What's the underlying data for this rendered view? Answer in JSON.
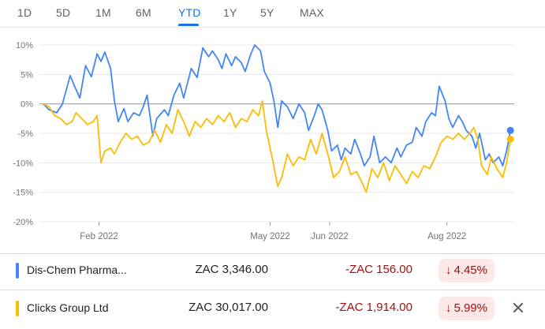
{
  "range_tabs": [
    {
      "label": "1D"
    },
    {
      "label": "5D"
    },
    {
      "label": "1M"
    },
    {
      "label": "6M"
    },
    {
      "label": "YTD",
      "active": true
    },
    {
      "label": "1Y"
    },
    {
      "label": "5Y"
    },
    {
      "label": "MAX"
    }
  ],
  "chart_data": {
    "type": "line",
    "y_ticks": [
      "10%",
      "5%",
      "0%",
      "-5%",
      "-10%",
      "-15%",
      "-20%"
    ],
    "y_tick_values": [
      10,
      5,
      0,
      -5,
      -10,
      -15,
      -20
    ],
    "ylim": [
      -20,
      10
    ],
    "x_range": [
      "2022-01-01",
      "2022-09-05"
    ],
    "x_ticks": [
      {
        "label": "Feb 2022",
        "date": "2022-02-01"
      },
      {
        "label": "May 2022",
        "date": "2022-05-01"
      },
      {
        "label": "Jun 2022",
        "date": "2022-06-01"
      },
      {
        "label": "Aug 2022",
        "date": "2022-08-01"
      }
    ],
    "baseline": 0,
    "grid": "horizontal",
    "series": [
      {
        "name": "Dis-Chem Pharma...",
        "color": "#4285f4",
        "points": [
          [
            "2022-01-03",
            0.0
          ],
          [
            "2022-01-06",
            -1.0
          ],
          [
            "2022-01-10",
            -1.5
          ],
          [
            "2022-01-13",
            0.0
          ],
          [
            "2022-01-17",
            4.8
          ],
          [
            "2022-01-19",
            3.2
          ],
          [
            "2022-01-22",
            1.0
          ],
          [
            "2022-01-25",
            6.5
          ],
          [
            "2022-01-28",
            4.6
          ],
          [
            "2022-01-31",
            8.5
          ],
          [
            "2022-02-02",
            7.2
          ],
          [
            "2022-02-04",
            8.8
          ],
          [
            "2022-02-07",
            6.0
          ],
          [
            "2022-02-09",
            0.5
          ],
          [
            "2022-02-11",
            -3.0
          ],
          [
            "2022-02-14",
            -0.8
          ],
          [
            "2022-02-16",
            -3.0
          ],
          [
            "2022-02-19",
            -1.5
          ],
          [
            "2022-02-22",
            -2.0
          ],
          [
            "2022-02-24",
            -0.5
          ],
          [
            "2022-02-26",
            1.5
          ],
          [
            "2022-03-01",
            -5.5
          ],
          [
            "2022-03-03",
            -2.5
          ],
          [
            "2022-03-07",
            -1.0
          ],
          [
            "2022-03-09",
            -2.0
          ],
          [
            "2022-03-12",
            1.5
          ],
          [
            "2022-03-15",
            3.5
          ],
          [
            "2022-03-17",
            1.0
          ],
          [
            "2022-03-21",
            6.0
          ],
          [
            "2022-03-24",
            4.5
          ],
          [
            "2022-03-27",
            9.5
          ],
          [
            "2022-03-30",
            8.0
          ],
          [
            "2022-04-01",
            9.0
          ],
          [
            "2022-04-04",
            7.5
          ],
          [
            "2022-04-06",
            6.0
          ],
          [
            "2022-04-08",
            8.5
          ],
          [
            "2022-04-11",
            6.5
          ],
          [
            "2022-04-13",
            8.0
          ],
          [
            "2022-04-16",
            7.0
          ],
          [
            "2022-04-18",
            5.5
          ],
          [
            "2022-04-21",
            8.5
          ],
          [
            "2022-04-23",
            10.0
          ],
          [
            "2022-04-26",
            9.0
          ],
          [
            "2022-04-28",
            5.5
          ],
          [
            "2022-05-01",
            3.5
          ],
          [
            "2022-05-03",
            0.5
          ],
          [
            "2022-05-05",
            -4.0
          ],
          [
            "2022-05-07",
            0.5
          ],
          [
            "2022-05-10",
            -0.5
          ],
          [
            "2022-05-13",
            -2.5
          ],
          [
            "2022-05-16",
            0.0
          ],
          [
            "2022-05-19",
            -1.5
          ],
          [
            "2022-05-21",
            -4.5
          ],
          [
            "2022-05-24",
            -2.0
          ],
          [
            "2022-05-26",
            0.0
          ],
          [
            "2022-05-28",
            -1.0
          ],
          [
            "2022-05-31",
            -4.5
          ],
          [
            "2022-06-02",
            -8.0
          ],
          [
            "2022-06-05",
            -7.0
          ],
          [
            "2022-06-07",
            -9.5
          ],
          [
            "2022-06-09",
            -7.5
          ],
          [
            "2022-06-12",
            -8.5
          ],
          [
            "2022-06-14",
            -6.0
          ],
          [
            "2022-06-17",
            -8.5
          ],
          [
            "2022-06-19",
            -10.5
          ],
          [
            "2022-06-22",
            -9.0
          ],
          [
            "2022-06-24",
            -5.5
          ],
          [
            "2022-06-27",
            -10.0
          ],
          [
            "2022-06-30",
            -9.0
          ],
          [
            "2022-07-03",
            -10.0
          ],
          [
            "2022-07-06",
            -7.5
          ],
          [
            "2022-07-08",
            -9.0
          ],
          [
            "2022-07-11",
            -7.0
          ],
          [
            "2022-07-14",
            -6.5
          ],
          [
            "2022-07-16",
            -4.0
          ],
          [
            "2022-07-19",
            -5.5
          ],
          [
            "2022-07-21",
            -3.0
          ],
          [
            "2022-07-24",
            -1.5
          ],
          [
            "2022-07-26",
            -2.0
          ],
          [
            "2022-07-28",
            3.0
          ],
          [
            "2022-07-31",
            0.5
          ],
          [
            "2022-08-02",
            -2.5
          ],
          [
            "2022-08-04",
            -4.0
          ],
          [
            "2022-08-07",
            -2.0
          ],
          [
            "2022-08-09",
            -3.0
          ],
          [
            "2022-08-11",
            -4.5
          ],
          [
            "2022-08-14",
            -5.5
          ],
          [
            "2022-08-16",
            -7.5
          ],
          [
            "2022-08-18",
            -5.0
          ],
          [
            "2022-08-21",
            -9.5
          ],
          [
            "2022-08-23",
            -8.5
          ],
          [
            "2022-08-25",
            -10.0
          ],
          [
            "2022-08-28",
            -9.0
          ],
          [
            "2022-08-30",
            -10.5
          ],
          [
            "2022-09-01",
            -8.0
          ],
          [
            "2022-09-03",
            -4.5
          ]
        ]
      },
      {
        "name": "Clicks Group Ltd",
        "color": "#fbbc04",
        "points": [
          [
            "2022-01-03",
            0.0
          ],
          [
            "2022-01-06",
            -0.5
          ],
          [
            "2022-01-09",
            -2.0
          ],
          [
            "2022-01-12",
            -2.5
          ],
          [
            "2022-01-15",
            -3.5
          ],
          [
            "2022-01-18",
            -3.0
          ],
          [
            "2022-01-20",
            -1.5
          ],
          [
            "2022-01-23",
            -2.5
          ],
          [
            "2022-01-26",
            -3.5
          ],
          [
            "2022-01-29",
            -3.0
          ],
          [
            "2022-01-31",
            -2.0
          ],
          [
            "2022-02-02",
            -10.0
          ],
          [
            "2022-02-04",
            -8.0
          ],
          [
            "2022-02-07",
            -7.5
          ],
          [
            "2022-02-09",
            -8.5
          ],
          [
            "2022-02-12",
            -6.5
          ],
          [
            "2022-02-15",
            -5.0
          ],
          [
            "2022-02-18",
            -6.0
          ],
          [
            "2022-02-21",
            -5.5
          ],
          [
            "2022-02-24",
            -7.0
          ],
          [
            "2022-02-27",
            -6.5
          ],
          [
            "2022-03-02",
            -4.5
          ],
          [
            "2022-03-05",
            -6.5
          ],
          [
            "2022-03-08",
            -3.5
          ],
          [
            "2022-03-11",
            -5.0
          ],
          [
            "2022-03-14",
            -1.0
          ],
          [
            "2022-03-17",
            -3.0
          ],
          [
            "2022-03-20",
            -5.5
          ],
          [
            "2022-03-23",
            -3.0
          ],
          [
            "2022-03-26",
            -4.0
          ],
          [
            "2022-03-29",
            -2.5
          ],
          [
            "2022-04-01",
            -3.5
          ],
          [
            "2022-04-04",
            -2.0
          ],
          [
            "2022-04-07",
            -3.0
          ],
          [
            "2022-04-10",
            -1.5
          ],
          [
            "2022-04-13",
            -4.0
          ],
          [
            "2022-04-16",
            -2.5
          ],
          [
            "2022-04-19",
            -3.0
          ],
          [
            "2022-04-22",
            -1.0
          ],
          [
            "2022-04-25",
            -2.0
          ],
          [
            "2022-04-27",
            0.5
          ],
          [
            "2022-04-29",
            -4.5
          ],
          [
            "2022-05-02",
            -9.0
          ],
          [
            "2022-05-05",
            -14.0
          ],
          [
            "2022-05-07",
            -12.5
          ],
          [
            "2022-05-10",
            -8.5
          ],
          [
            "2022-05-13",
            -10.5
          ],
          [
            "2022-05-16",
            -9.0
          ],
          [
            "2022-05-19",
            -9.5
          ],
          [
            "2022-05-22",
            -6.0
          ],
          [
            "2022-05-25",
            -8.5
          ],
          [
            "2022-05-28",
            -5.0
          ],
          [
            "2022-05-31",
            -8.5
          ],
          [
            "2022-06-03",
            -12.5
          ],
          [
            "2022-06-06",
            -11.5
          ],
          [
            "2022-06-09",
            -9.0
          ],
          [
            "2022-06-12",
            -12.0
          ],
          [
            "2022-06-15",
            -11.5
          ],
          [
            "2022-06-18",
            -13.5
          ],
          [
            "2022-06-20",
            -15.0
          ],
          [
            "2022-06-23",
            -11.0
          ],
          [
            "2022-06-26",
            -12.5
          ],
          [
            "2022-06-29",
            -10.0
          ],
          [
            "2022-07-02",
            -13.0
          ],
          [
            "2022-07-05",
            -10.5
          ],
          [
            "2022-07-08",
            -12.0
          ],
          [
            "2022-07-11",
            -13.5
          ],
          [
            "2022-07-14",
            -11.5
          ],
          [
            "2022-07-17",
            -12.5
          ],
          [
            "2022-07-20",
            -10.5
          ],
          [
            "2022-07-23",
            -11.0
          ],
          [
            "2022-07-26",
            -9.0
          ],
          [
            "2022-07-29",
            -6.5
          ],
          [
            "2022-08-01",
            -5.5
          ],
          [
            "2022-08-04",
            -6.0
          ],
          [
            "2022-08-07",
            -5.0
          ],
          [
            "2022-08-10",
            -6.0
          ],
          [
            "2022-08-13",
            -5.0
          ],
          [
            "2022-08-15",
            -4.0
          ],
          [
            "2022-08-17",
            -6.0
          ],
          [
            "2022-08-19",
            -10.5
          ],
          [
            "2022-08-22",
            -12.0
          ],
          [
            "2022-08-24",
            -9.0
          ],
          [
            "2022-08-27",
            -11.0
          ],
          [
            "2022-08-30",
            -12.5
          ],
          [
            "2022-09-01",
            -10.0
          ],
          [
            "2022-09-03",
            -6.0
          ]
        ]
      }
    ]
  },
  "rows": [
    {
      "name": "Dis-Chem Pharma...",
      "price": "ZAC 3,346.00",
      "change": "-ZAC 156.00",
      "arrow": "↓",
      "pct": "4.45%",
      "color": "#4285f4"
    },
    {
      "name": "Clicks Group Ltd",
      "price": "ZAC 30,017.00",
      "change": "-ZAC 1,914.00",
      "arrow": "↓",
      "pct": "5.99%",
      "color": "#fbbc04",
      "close_glyph": "✕"
    }
  ]
}
